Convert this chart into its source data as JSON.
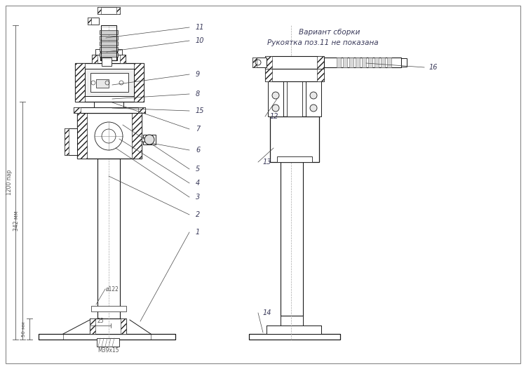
{
  "bg_color": "#ffffff",
  "lc": "#1a1a1a",
  "ac": "#3a3a5a",
  "dc": "#555555",
  "note1": "Вариант сборки",
  "note2": "Рукоятка поз.11 не показана",
  "dim_1200": "1200 пар",
  "dim_342": "342 мм",
  "dim_50": "50 мм",
  "dim_25": "25",
  "dim_phi122": "ø122",
  "dim_M39x15": "М39х15",
  "fig_width": 7.5,
  "fig_height": 5.26,
  "dpi": 100
}
